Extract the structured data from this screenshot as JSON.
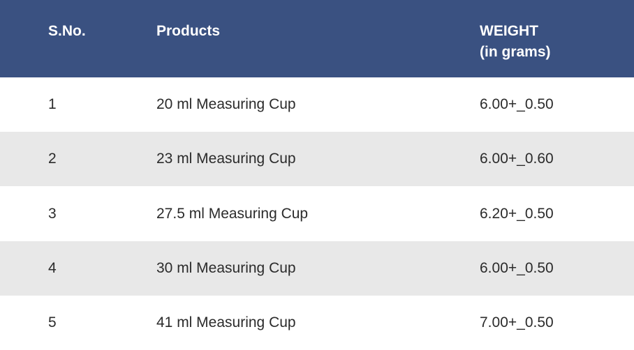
{
  "table": {
    "headers": {
      "sno": "S.No.",
      "products": "Products",
      "weight_line1": "WEIGHT",
      "weight_line2": "(in grams)"
    },
    "rows": [
      {
        "sno": "1",
        "product": "20 ml Measuring Cup",
        "weight": "6.00+_0.50"
      },
      {
        "sno": "2",
        "product": "23 ml Measuring Cup",
        "weight": "6.00+_0.60"
      },
      {
        "sno": "3",
        "product": "27.5 ml Measuring Cup",
        "weight": "6.20+_0.50"
      },
      {
        "sno": "4",
        "product": "30 ml Measuring Cup",
        "weight": "6.00+_0.50"
      },
      {
        "sno": "5",
        "product": "41 ml Measuring Cup",
        "weight": "7.00+_0.50"
      }
    ],
    "colors": {
      "header_bg": "#3a5181",
      "header_text": "#ffffff",
      "row_alt_bg": "#e8e8e8",
      "row_bg": "#ffffff"
    }
  }
}
